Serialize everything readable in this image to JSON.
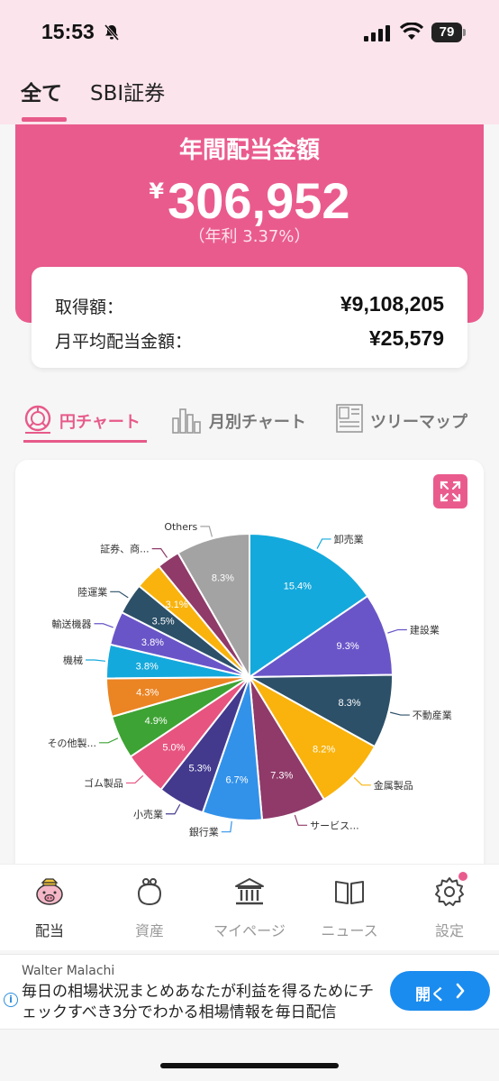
{
  "status": {
    "time": "15:53",
    "battery": "79"
  },
  "account_tabs": [
    {
      "label": "全て",
      "active": true
    },
    {
      "label": "SBI証券",
      "active": false
    }
  ],
  "hero": {
    "title": "年間配当金額",
    "currency": "¥",
    "amount": "306,952",
    "yield": "（年利 3.37%）"
  },
  "summary": {
    "acquired_label": "取得額：",
    "acquired_value": "¥9,108,205",
    "monthly_label": "月平均配当金額：",
    "monthly_value": "¥25,579"
  },
  "chart_tabs": [
    {
      "label": "円チャート",
      "icon": "pie-chart-icon",
      "active": true
    },
    {
      "label": "月別チャート",
      "icon": "bar-chart-icon",
      "active": false
    },
    {
      "label": "ツリーマップ",
      "icon": "treemap-icon",
      "active": false
    }
  ],
  "chart_data": {
    "type": "pie",
    "categories": [
      "卸売業",
      "建設業",
      "不動産業",
      "金属製品",
      "サービス...",
      "銀行業",
      "小売業",
      "ゴム製品",
      "その他製...",
      "機械",
      "輸送機器",
      "陸運業",
      "証券、商...",
      "Others"
    ],
    "values": [
      15.4,
      9.3,
      8.3,
      8.2,
      7.3,
      6.7,
      5.3,
      5.0,
      4.9,
      4.3,
      3.8,
      3.8,
      3.5,
      3.1,
      2.6,
      8.3
    ],
    "labels": [
      "15.4%",
      "9.3%",
      "8.3%",
      "8.2%",
      "7.3%",
      "6.7%",
      "5.3%",
      "5.0%",
      "4.9%",
      "4.3%",
      "3.8%",
      "3.8%",
      "3.5%",
      "3.1%",
      "",
      "8.3%"
    ],
    "slice_names": [
      "卸売業",
      "建設業",
      "不動産業",
      "金属製品",
      "サービス...",
      "銀行業",
      "小売業",
      "ゴム製品",
      "その他製...",
      "",
      "機械",
      "輸送機器",
      "陸運業",
      "",
      "証券、商...",
      "Others"
    ],
    "colors": [
      "#14a9dc",
      "#6a55c8",
      "#2c5068",
      "#f9b30c",
      "#8f3a69",
      "#3292ea",
      "#433a8e",
      "#e75480",
      "#3da334",
      "#eb8423",
      "#14a9dc",
      "#6a55c8",
      "#2c5068",
      "#f9b30c",
      "#8f3a69",
      "#a3a3a3"
    ]
  },
  "nav": [
    {
      "label": "配当",
      "icon": "piggy-bank-icon",
      "active": true
    },
    {
      "label": "資産",
      "icon": "purse-icon",
      "active": false
    },
    {
      "label": "マイページ",
      "icon": "bank-icon",
      "active": false
    },
    {
      "label": "ニュース",
      "icon": "book-icon",
      "active": false
    },
    {
      "label": "設定",
      "icon": "gear-icon",
      "active": false
    }
  ],
  "ad": {
    "advertiser": "Walter Malachi",
    "text": "毎日の相場状況まとめあなたが利益を得るためにチェックすべき3分でわかる相場情報を毎日配信",
    "button": "開く"
  }
}
